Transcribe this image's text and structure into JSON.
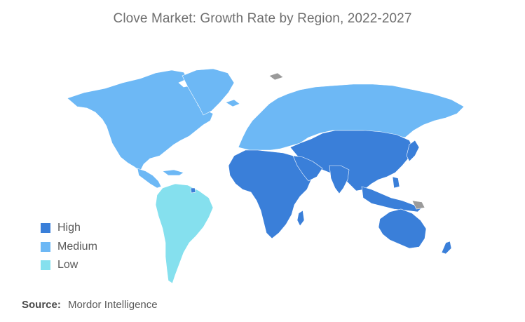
{
  "title": "Clove Market: Growth Rate by Region, 2022-2027",
  "legend": {
    "items": [
      {
        "label": "High",
        "color": "#3a7fd9"
      },
      {
        "label": "Medium",
        "color": "#6db8f5"
      },
      {
        "label": "Low",
        "color": "#85e0ee"
      }
    ]
  },
  "source": {
    "label": "Source:",
    "value": "Mordor Intelligence"
  },
  "colors": {
    "high": "#3a7fd9",
    "medium": "#6db8f5",
    "low": "#85e0ee",
    "no_data": "#9a9a9a"
  }
}
